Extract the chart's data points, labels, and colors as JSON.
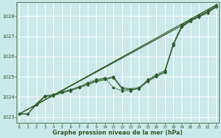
{
  "xlabel": "Graphe pression niveau de la mer (hPa)",
  "background_color": "#cce8e8",
  "grid_color": "#aacccc",
  "line_color": "#2d5a2d",
  "ylim": [
    1022.7,
    1028.7
  ],
  "xlim": [
    -0.3,
    23.3
  ],
  "yticks": [
    1023,
    1024,
    1025,
    1026,
    1027,
    1028
  ],
  "xticks": [
    0,
    1,
    2,
    3,
    4,
    5,
    6,
    7,
    8,
    9,
    10,
    11,
    12,
    13,
    14,
    15,
    16,
    17,
    18,
    19,
    20,
    21,
    22,
    23
  ],
  "trend1_x": [
    0,
    23
  ],
  "trend1_y": [
    1023.15,
    1028.45
  ],
  "trend2_x": [
    0,
    23
  ],
  "trend2_y": [
    1023.15,
    1028.55
  ],
  "smooth1_x": [
    0,
    1,
    2,
    3,
    4,
    5,
    6,
    7,
    8,
    9,
    10,
    11,
    12,
    13,
    14,
    15,
    16,
    17,
    18,
    19,
    20,
    21,
    22,
    23
  ],
  "smooth1_y": [
    1023.15,
    1023.15,
    1023.6,
    1024.0,
    1024.05,
    1024.2,
    1024.3,
    1024.45,
    1024.6,
    1024.75,
    1024.85,
    1024.95,
    1024.4,
    1024.35,
    1024.4,
    1024.75,
    1025.0,
    1025.2,
    1026.55,
    1027.45,
    1027.75,
    1027.95,
    1028.15,
    1028.45
  ],
  "smooth2_x": [
    0,
    1,
    2,
    3,
    4,
    5,
    6,
    7,
    8,
    9,
    10,
    11,
    12,
    13,
    14,
    15,
    16,
    17,
    18,
    19,
    20,
    21,
    22,
    23
  ],
  "smooth2_y": [
    1023.15,
    1023.15,
    1023.65,
    1024.05,
    1024.1,
    1024.25,
    1024.35,
    1024.5,
    1024.65,
    1024.8,
    1024.9,
    1025.0,
    1024.45,
    1024.4,
    1024.45,
    1024.8,
    1025.05,
    1025.25,
    1026.6,
    1027.5,
    1027.8,
    1028.0,
    1028.2,
    1028.5
  ],
  "dotted_x": [
    0,
    1,
    2,
    3,
    4,
    5,
    6,
    7,
    8,
    9,
    10,
    11,
    12,
    13,
    14,
    15,
    16,
    17,
    18,
    19,
    20,
    21,
    22,
    23
  ],
  "dotted_y": [
    1023.15,
    1023.15,
    1023.65,
    1024.05,
    1024.1,
    1024.25,
    1024.35,
    1024.5,
    1024.7,
    1024.85,
    1024.95,
    1024.45,
    1024.3,
    1024.3,
    1024.45,
    1024.85,
    1025.1,
    1025.3,
    1026.65,
    1027.55,
    1027.85,
    1028.05,
    1028.25,
    1028.55
  ]
}
